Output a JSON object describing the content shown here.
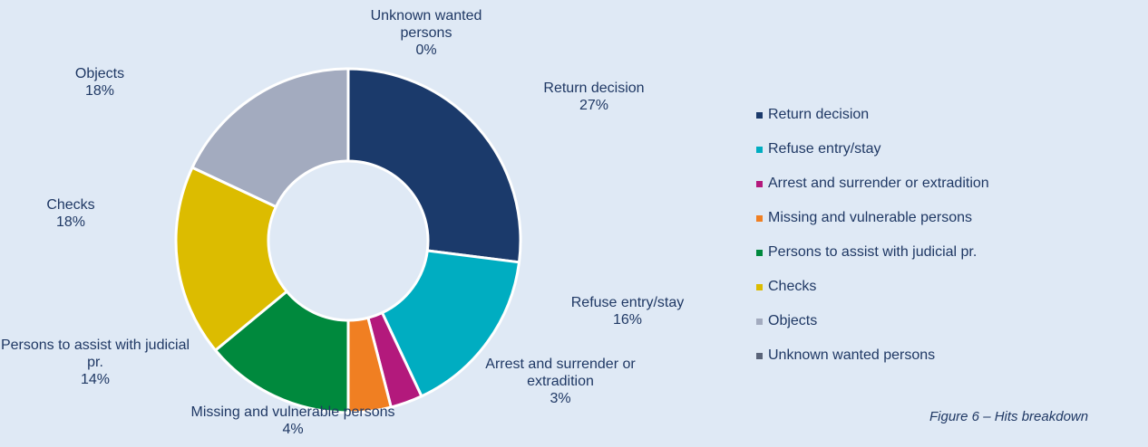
{
  "chart_data": {
    "type": "donut",
    "caption": "Figure 6 – Hits breakdown",
    "categories": [
      "Return decision",
      "Refuse entry/stay",
      "Arrest and surrender or extradition",
      "Missing and vulnerable persons",
      "Persons to assist with judicial pr.",
      "Checks",
      "Objects",
      "Unknown wanted persons"
    ],
    "values": [
      27,
      16,
      3,
      4,
      14,
      18,
      18,
      0
    ],
    "value_labels": [
      "27%",
      "16%",
      "3%",
      "4%",
      "14%",
      "18%",
      "18%",
      "0%"
    ],
    "colors": [
      "#1b3a6b",
      "#00adc1",
      "#b3197c",
      "#f07f22",
      "#00893d",
      "#dcbc00",
      "#a3abbf",
      "#5a6479"
    ],
    "legend": "right"
  }
}
